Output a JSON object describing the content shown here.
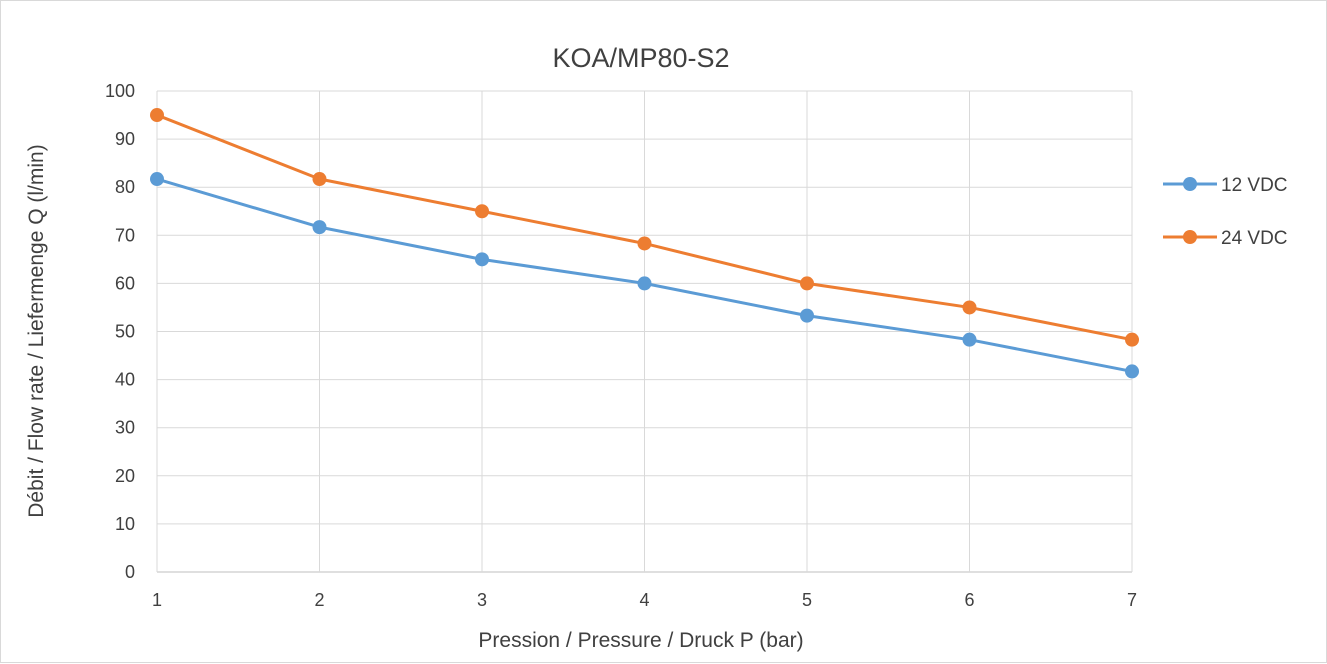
{
  "chart_data": {
    "type": "line",
    "title": "KOA/MP80-S2",
    "xlabel": "Pression / Pressure / Druck P (bar)",
    "ylabel": "Débit / Flow rate / Liefermenge Q (l/min)",
    "x": [
      1,
      2,
      3,
      4,
      5,
      6,
      7
    ],
    "xlim": [
      1,
      7
    ],
    "ylim": [
      0,
      100
    ],
    "yticks": [
      0,
      10,
      20,
      30,
      40,
      50,
      60,
      70,
      80,
      90,
      100
    ],
    "grid": true,
    "legend_position": "right",
    "series": [
      {
        "name": "12 VDC",
        "color": "#5b9bd5",
        "values": [
          81.7,
          71.7,
          65,
          60,
          53.3,
          48.3,
          41.7
        ]
      },
      {
        "name": "24 VDC",
        "color": "#ed7d31",
        "values": [
          95,
          81.7,
          75,
          68.3,
          60,
          55,
          48.3
        ]
      }
    ]
  }
}
